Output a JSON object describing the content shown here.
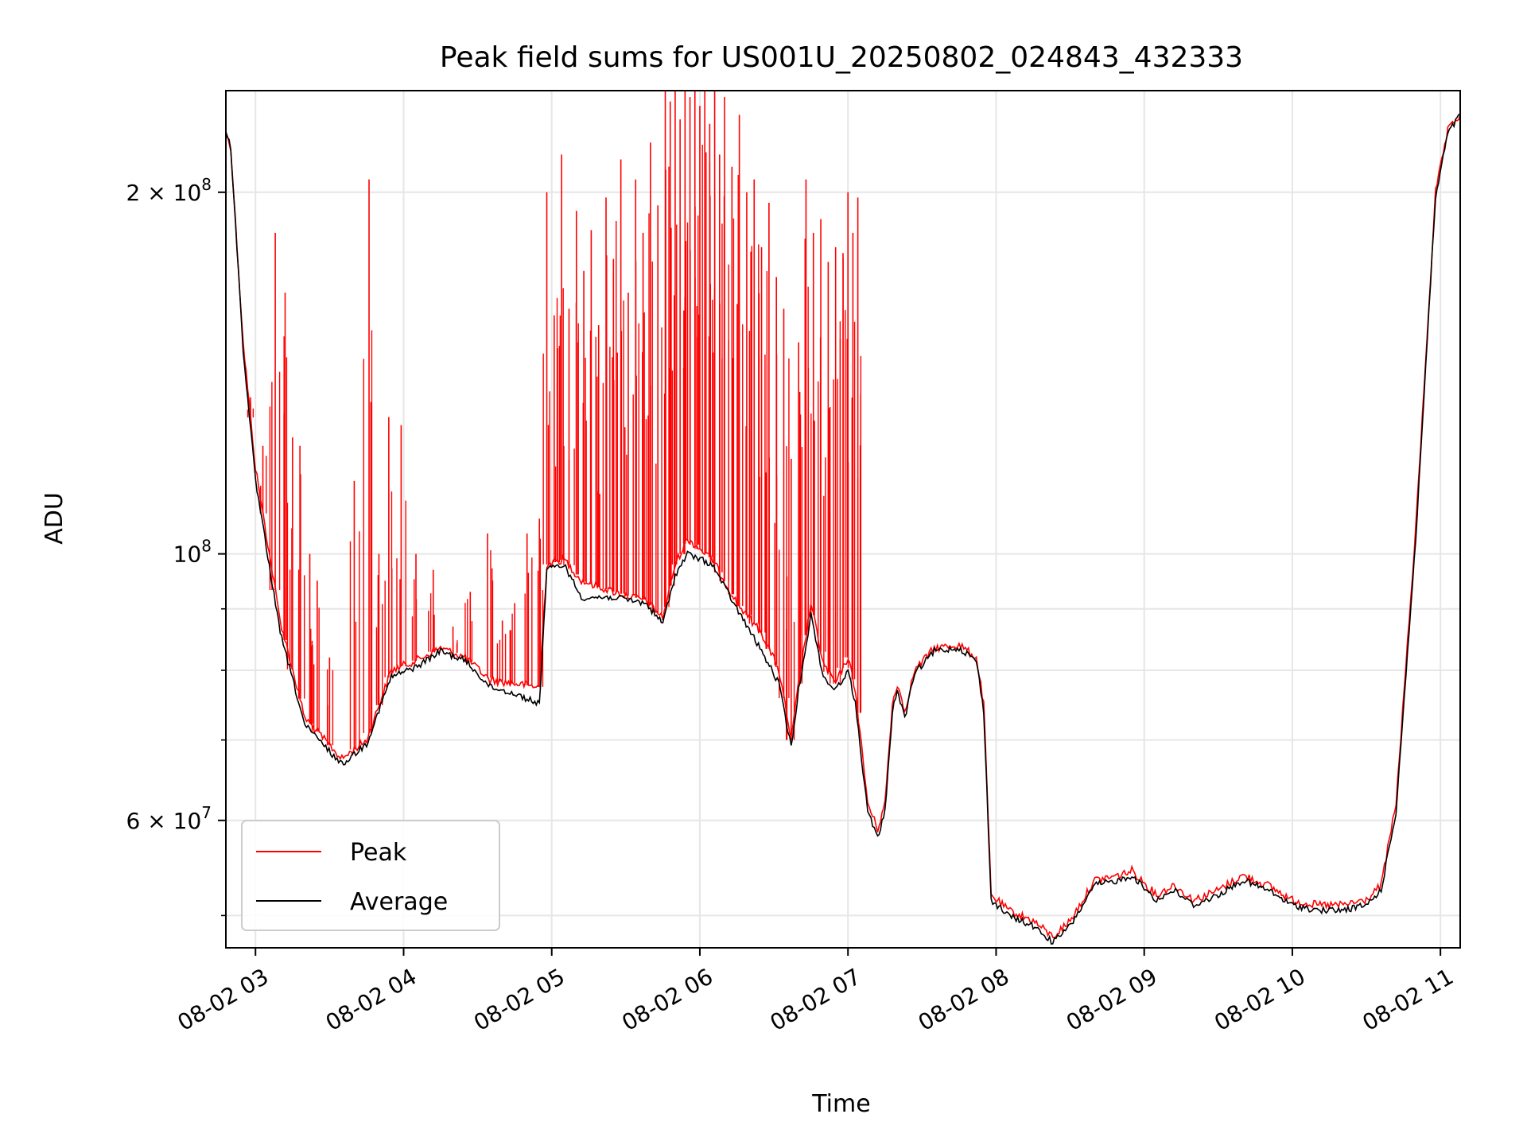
{
  "chart_data": {
    "type": "line",
    "title": "Peak field sums for US001U_20250802_024843_432333",
    "xlabel": "Time",
    "ylabel": "ADU",
    "yscale": "log",
    "grid": true,
    "legend_position": "lower-left",
    "xlim": [
      "2025-08-02 02:48",
      "2025-08-02 11:08"
    ],
    "ylim": [
      47000000,
      243000000
    ],
    "x_ticks": [
      {
        "t": "2025-08-02 03:00",
        "label": "08-02 03"
      },
      {
        "t": "2025-08-02 04:00",
        "label": "08-02 04"
      },
      {
        "t": "2025-08-02 05:00",
        "label": "08-02 05"
      },
      {
        "t": "2025-08-02 06:00",
        "label": "08-02 06"
      },
      {
        "t": "2025-08-02 07:00",
        "label": "08-02 07"
      },
      {
        "t": "2025-08-02 08:00",
        "label": "08-02 08"
      },
      {
        "t": "2025-08-02 09:00",
        "label": "08-02 09"
      },
      {
        "t": "2025-08-02 10:00",
        "label": "08-02 10"
      },
      {
        "t": "2025-08-02 11:00",
        "label": "08-02 11"
      }
    ],
    "y_major_ticks": [
      {
        "value": 60000000,
        "mantissa": "6",
        "base": "10",
        "exp": "7"
      },
      {
        "value": 100000000,
        "mantissa": "",
        "base": "10",
        "exp": "8"
      },
      {
        "value": 200000000,
        "mantissa": "2",
        "base": "10",
        "exp": "8"
      }
    ],
    "y_minor_ticks": [
      50000000,
      70000000,
      80000000,
      90000000,
      300000000
    ],
    "series": [
      {
        "name": "Peak",
        "color": "#ff0000",
        "baseline": [
          [
            "2025-08-02 02:48",
            224000000
          ],
          [
            "2025-08-02 02:50",
            218000000
          ],
          [
            "2025-08-02 02:55",
            150000000
          ],
          [
            "2025-08-02 03:00",
            118000000
          ],
          [
            "2025-08-02 03:10",
            88000000
          ],
          [
            "2025-08-02 03:20",
            73000000
          ],
          [
            "2025-08-02 03:35",
            67500000
          ],
          [
            "2025-08-02 03:45",
            70000000
          ],
          [
            "2025-08-02 03:55",
            80000000
          ],
          [
            "2025-08-02 04:05",
            81500000
          ],
          [
            "2025-08-02 04:15",
            83500000
          ],
          [
            "2025-08-02 04:25",
            82000000
          ],
          [
            "2025-08-02 04:35",
            78500000
          ],
          [
            "2025-08-02 04:45",
            78000000
          ],
          [
            "2025-08-02 04:55",
            77500000
          ],
          [
            "2025-08-02 04:58",
            98000000
          ],
          [
            "2025-08-02 05:05",
            99000000
          ],
          [
            "2025-08-02 05:12",
            95000000
          ],
          [
            "2025-08-02 05:25",
            93000000
          ],
          [
            "2025-08-02 05:38",
            91500000
          ],
          [
            "2025-08-02 05:45",
            88500000
          ],
          [
            "2025-08-02 05:50",
            98000000
          ],
          [
            "2025-08-02 05:55",
            103000000
          ],
          [
            "2025-08-02 06:05",
            99000000
          ],
          [
            "2025-08-02 06:15",
            91000000
          ],
          [
            "2025-08-02 06:25",
            86000000
          ],
          [
            "2025-08-02 06:32",
            80000000
          ],
          [
            "2025-08-02 06:37",
            70000000
          ],
          [
            "2025-08-02 06:40",
            78000000
          ],
          [
            "2025-08-02 06:45",
            91000000
          ],
          [
            "2025-08-02 06:50",
            81000000
          ],
          [
            "2025-08-02 06:55",
            78000000
          ],
          [
            "2025-08-02 07:00",
            82000000
          ],
          [
            "2025-08-02 07:03",
            77000000
          ],
          [
            "2025-08-02 07:08",
            62000000
          ],
          [
            "2025-08-02 07:12",
            59000000
          ],
          [
            "2025-08-02 07:15",
            62000000
          ],
          [
            "2025-08-02 07:18",
            75000000
          ],
          [
            "2025-08-02 07:20",
            78000000
          ],
          [
            "2025-08-02 07:23",
            74000000
          ],
          [
            "2025-08-02 07:27",
            80000000
          ],
          [
            "2025-08-02 07:35",
            83500000
          ],
          [
            "2025-08-02 07:45",
            84000000
          ],
          [
            "2025-08-02 07:52",
            82000000
          ],
          [
            "2025-08-02 07:55",
            75000000
          ],
          [
            "2025-08-02 07:58",
            52000000
          ],
          [
            "2025-08-02 08:05",
            50500000
          ],
          [
            "2025-08-02 08:15",
            49500000
          ],
          [
            "2025-08-02 08:23",
            48000000
          ],
          [
            "2025-08-02 08:30",
            49500000
          ],
          [
            "2025-08-02 08:40",
            53500000
          ],
          [
            "2025-08-02 08:50",
            54000000
          ],
          [
            "2025-08-02 08:55",
            54500000
          ],
          [
            "2025-08-02 09:05",
            52000000
          ],
          [
            "2025-08-02 09:12",
            53000000
          ],
          [
            "2025-08-02 09:20",
            51500000
          ],
          [
            "2025-08-02 09:30",
            52500000
          ],
          [
            "2025-08-02 09:40",
            54000000
          ],
          [
            "2025-08-02 09:50",
            53000000
          ],
          [
            "2025-08-02 10:00",
            51500000
          ],
          [
            "2025-08-02 10:10",
            51000000
          ],
          [
            "2025-08-02 10:20",
            51000000
          ],
          [
            "2025-08-02 10:30",
            51500000
          ],
          [
            "2025-08-02 10:36",
            53000000
          ],
          [
            "2025-08-02 10:42",
            62000000
          ],
          [
            "2025-08-02 10:50",
            105000000
          ],
          [
            "2025-08-02 10:58",
            200000000
          ],
          [
            "2025-08-02 11:03",
            225000000
          ],
          [
            "2025-08-02 11:08",
            232000000
          ]
        ],
        "spikes": [
          [
            "2025-08-02 02:58",
            135000000
          ],
          [
            "2025-08-02 03:03",
            123000000
          ],
          [
            "2025-08-02 03:08",
            185000000
          ],
          [
            "2025-08-02 03:12",
            165000000
          ],
          [
            "2025-08-02 03:15",
            125000000
          ],
          [
            "2025-08-02 03:18",
            123000000
          ],
          [
            "2025-08-02 03:22",
            100000000
          ],
          [
            "2025-08-02 03:25",
            95000000
          ],
          [
            "2025-08-02 03:30",
            82000000
          ],
          [
            "2025-08-02 03:40",
            115000000
          ],
          [
            "2025-08-02 03:46",
            205000000
          ],
          [
            "2025-08-02 03:50",
            100000000
          ],
          [
            "2025-08-02 03:54",
            130000000
          ],
          [
            "2025-08-02 03:59",
            128000000
          ],
          [
            "2025-08-02 04:05",
            100000000
          ],
          [
            "2025-08-02 04:12",
            97000000
          ],
          [
            "2025-08-02 04:20",
            87000000
          ],
          [
            "2025-08-02 04:27",
            93000000
          ],
          [
            "2025-08-02 04:34",
            104000000
          ],
          [
            "2025-08-02 04:40",
            88000000
          ],
          [
            "2025-08-02 04:45",
            91000000
          ],
          [
            "2025-08-02 04:50",
            104000000
          ],
          [
            "2025-08-02 04:55",
            107000000
          ],
          [
            "2025-08-02 04:58",
            200000000
          ],
          [
            "2025-08-02 05:01",
            158000000
          ],
          [
            "2025-08-02 05:04",
            215000000
          ],
          [
            "2025-08-02 05:07",
            160000000
          ],
          [
            "2025-08-02 05:10",
            193000000
          ],
          [
            "2025-08-02 05:13",
            172000000
          ],
          [
            "2025-08-02 05:16",
            186000000
          ],
          [
            "2025-08-02 05:19",
            155000000
          ],
          [
            "2025-08-02 05:22",
            198000000
          ],
          [
            "2025-08-02 05:25",
            176000000
          ],
          [
            "2025-08-02 05:28",
            213000000
          ],
          [
            "2025-08-02 05:31",
            165000000
          ],
          [
            "2025-08-02 05:34",
            205000000
          ],
          [
            "2025-08-02 05:37",
            185000000
          ],
          [
            "2025-08-02 05:40",
            220000000
          ],
          [
            "2025-08-02 05:43",
            195000000
          ],
          [
            "2025-08-02 05:46",
            243000000
          ],
          [
            "2025-08-02 05:48",
            238000000
          ],
          [
            "2025-08-02 05:50",
            243000000
          ],
          [
            "2025-08-02 05:52",
            230000000
          ],
          [
            "2025-08-02 05:54",
            243000000
          ],
          [
            "2025-08-02 05:56",
            240000000
          ],
          [
            "2025-08-02 05:58",
            243000000
          ],
          [
            "2025-08-02 06:00",
            236000000
          ],
          [
            "2025-08-02 06:02",
            243000000
          ],
          [
            "2025-08-02 06:04",
            228000000
          ],
          [
            "2025-08-02 06:06",
            243000000
          ],
          [
            "2025-08-02 06:08",
            215000000
          ],
          [
            "2025-08-02 06:10",
            240000000
          ],
          [
            "2025-08-02 06:13",
            210000000
          ],
          [
            "2025-08-02 06:16",
            232000000
          ],
          [
            "2025-08-02 06:19",
            200000000
          ],
          [
            "2025-08-02 06:22",
            205000000
          ],
          [
            "2025-08-02 06:25",
            180000000
          ],
          [
            "2025-08-02 06:28",
            196000000
          ],
          [
            "2025-08-02 06:31",
            170000000
          ],
          [
            "2025-08-02 06:34",
            160000000
          ],
          [
            "2025-08-02 06:37",
            120000000
          ],
          [
            "2025-08-02 06:40",
            150000000
          ],
          [
            "2025-08-02 06:43",
            205000000
          ],
          [
            "2025-08-02 06:46",
            185000000
          ],
          [
            "2025-08-02 06:49",
            190000000
          ],
          [
            "2025-08-02 06:52",
            175000000
          ],
          [
            "2025-08-02 06:55",
            180000000
          ],
          [
            "2025-08-02 06:58",
            178000000
          ],
          [
            "2025-08-02 07:00",
            200000000
          ],
          [
            "2025-08-02 07:02",
            185000000
          ],
          [
            "2025-08-02 07:04",
            198000000
          ]
        ]
      },
      {
        "name": "Average",
        "color": "#000000",
        "baseline": [
          [
            "2025-08-02 02:48",
            224000000
          ],
          [
            "2025-08-02 02:50",
            218000000
          ],
          [
            "2025-08-02 02:55",
            148000000
          ],
          [
            "2025-08-02 03:00",
            115000000
          ],
          [
            "2025-08-02 03:10",
            86000000
          ],
          [
            "2025-08-02 03:20",
            72000000
          ],
          [
            "2025-08-02 03:35",
            66800000
          ],
          [
            "2025-08-02 03:45",
            69500000
          ],
          [
            "2025-08-02 03:55",
            79000000
          ],
          [
            "2025-08-02 04:05",
            80500000
          ],
          [
            "2025-08-02 04:15",
            83000000
          ],
          [
            "2025-08-02 04:25",
            81500000
          ],
          [
            "2025-08-02 04:35",
            77500000
          ],
          [
            "2025-08-02 04:45",
            76500000
          ],
          [
            "2025-08-02 04:55",
            75000000
          ],
          [
            "2025-08-02 04:58",
            97000000
          ],
          [
            "2025-08-02 05:05",
            98000000
          ],
          [
            "2025-08-02 05:12",
            92000000
          ],
          [
            "2025-08-02 05:25",
            92000000
          ],
          [
            "2025-08-02 05:38",
            91000000
          ],
          [
            "2025-08-02 05:45",
            87500000
          ],
          [
            "2025-08-02 05:50",
            96000000
          ],
          [
            "2025-08-02 05:55",
            100000000
          ],
          [
            "2025-08-02 06:05",
            98000000
          ],
          [
            "2025-08-02 06:15",
            90000000
          ],
          [
            "2025-08-02 06:25",
            83000000
          ],
          [
            "2025-08-02 06:32",
            78000000
          ],
          [
            "2025-08-02 06:37",
            69000000
          ],
          [
            "2025-08-02 06:40",
            77000000
          ],
          [
            "2025-08-02 06:45",
            89000000
          ],
          [
            "2025-08-02 06:50",
            79000000
          ],
          [
            "2025-08-02 06:55",
            77000000
          ],
          [
            "2025-08-02 07:00",
            80000000
          ],
          [
            "2025-08-02 07:03",
            75000000
          ],
          [
            "2025-08-02 07:08",
            61000000
          ],
          [
            "2025-08-02 07:12",
            58000000
          ],
          [
            "2025-08-02 07:15",
            61000000
          ],
          [
            "2025-08-02 07:18",
            74000000
          ],
          [
            "2025-08-02 07:20",
            77000000
          ],
          [
            "2025-08-02 07:23",
            73000000
          ],
          [
            "2025-08-02 07:27",
            79500000
          ],
          [
            "2025-08-02 07:35",
            83000000
          ],
          [
            "2025-08-02 07:45",
            83500000
          ],
          [
            "2025-08-02 07:52",
            81500000
          ],
          [
            "2025-08-02 07:55",
            74000000
          ],
          [
            "2025-08-02 07:58",
            51500000
          ],
          [
            "2025-08-02 08:05",
            50000000
          ],
          [
            "2025-08-02 08:15",
            49000000
          ],
          [
            "2025-08-02 08:23",
            47500000
          ],
          [
            "2025-08-02 08:30",
            49000000
          ],
          [
            "2025-08-02 08:40",
            53000000
          ],
          [
            "2025-08-02 08:50",
            53500000
          ],
          [
            "2025-08-02 08:55",
            54000000
          ],
          [
            "2025-08-02 09:05",
            51500000
          ],
          [
            "2025-08-02 09:12",
            52500000
          ],
          [
            "2025-08-02 09:20",
            51000000
          ],
          [
            "2025-08-02 09:30",
            52000000
          ],
          [
            "2025-08-02 09:40",
            53500000
          ],
          [
            "2025-08-02 09:50",
            52500000
          ],
          [
            "2025-08-02 10:00",
            51000000
          ],
          [
            "2025-08-02 10:10",
            50500000
          ],
          [
            "2025-08-02 10:20",
            50500000
          ],
          [
            "2025-08-02 10:30",
            51000000
          ],
          [
            "2025-08-02 10:36",
            52500000
          ],
          [
            "2025-08-02 10:42",
            61000000
          ],
          [
            "2025-08-02 10:50",
            103000000
          ],
          [
            "2025-08-02 10:58",
            198000000
          ],
          [
            "2025-08-02 11:03",
            224000000
          ],
          [
            "2025-08-02 11:08",
            232000000
          ]
        ]
      }
    ]
  }
}
